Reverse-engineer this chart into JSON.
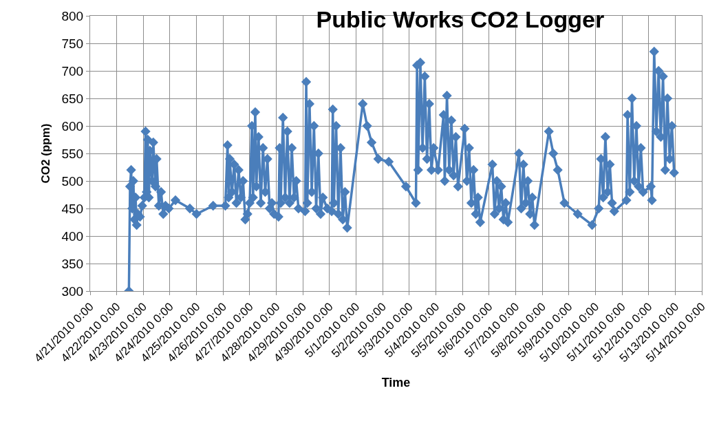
{
  "chart_data": {
    "type": "line",
    "title": "Public Works CO2 Logger",
    "xlabel": "Time",
    "ylabel": "CO2 (ppm)",
    "color": "#4a7ebb",
    "marker": "diamond",
    "line_style": "solid",
    "grid": true,
    "xlim": [
      "2010-04-21",
      "2010-05-14"
    ],
    "xticks": [
      {
        "value": "2010-04-21",
        "label": "4/21/2010 0:00"
      },
      {
        "value": "2010-04-22",
        "label": "4/22/2010 0:00"
      },
      {
        "value": "2010-04-23",
        "label": "4/23/2010 0:00"
      },
      {
        "value": "2010-04-24",
        "label": "4/24/2010 0:00"
      },
      {
        "value": "2010-04-25",
        "label": "4/25/2010 0:00"
      },
      {
        "value": "2010-04-26",
        "label": "4/26/2010 0:00"
      },
      {
        "value": "2010-04-27",
        "label": "4/27/2010 0:00"
      },
      {
        "value": "2010-04-28",
        "label": "4/28/2010 0:00"
      },
      {
        "value": "2010-04-29",
        "label": "4/29/2010 0:00"
      },
      {
        "value": "2010-04-30",
        "label": "4/30/2010 0:00"
      },
      {
        "value": "2010-05-01",
        "label": "5/1/2010 0:00"
      },
      {
        "value": "2010-05-02",
        "label": "5/2/2010 0:00"
      },
      {
        "value": "2010-05-03",
        "label": "5/3/2010 0:00"
      },
      {
        "value": "2010-05-04",
        "label": "5/4/2010 0:00"
      },
      {
        "value": "2010-05-05",
        "label": "5/5/2010 0:00"
      },
      {
        "value": "2010-05-06",
        "label": "5/6/2010 0:00"
      },
      {
        "value": "2010-05-07",
        "label": "5/7/2010 0:00"
      },
      {
        "value": "2010-05-08",
        "label": "5/8/2010 0:00"
      },
      {
        "value": "2010-05-09",
        "label": "5/9/2010 0:00"
      },
      {
        "value": "2010-05-10",
        "label": "5/10/2010 0:00"
      },
      {
        "value": "2010-05-11",
        "label": "5/11/2010 0:00"
      },
      {
        "value": "2010-05-12",
        "label": "5/12/2010 0:00"
      },
      {
        "value": "2010-05-13",
        "label": "5/13/2010 0:00"
      },
      {
        "value": "2010-05-14",
        "label": "5/14/2010 0:00"
      }
    ],
    "ylim": [
      300,
      800
    ],
    "yticks": [
      300,
      350,
      400,
      450,
      500,
      550,
      600,
      650,
      700,
      750,
      800
    ],
    "x": [
      "2010-04-22T11:00",
      "2010-04-22T12:00",
      "2010-04-22T13:00",
      "2010-04-22T14:00",
      "2010-04-22T15:00",
      "2010-04-22T16:00",
      "2010-04-22T17:00",
      "2010-04-22T18:00",
      "2010-04-22T19:00",
      "2010-04-22T21:00",
      "2010-04-22T23:00",
      "2010-04-23T01:00",
      "2010-04-23T02:00",
      "2010-04-23T03:00",
      "2010-04-23T04:00",
      "2010-04-23T05:00",
      "2010-04-23T06:00",
      "2010-04-23T08:00",
      "2010-04-23T09:00",
      "2010-04-23T11:00",
      "2010-04-23T12:00",
      "2010-04-23T14:00",
      "2010-04-23T16:00",
      "2010-04-23T18:00",
      "2010-04-23T20:00",
      "2010-04-23T23:00",
      "2010-04-24T05:00",
      "2010-04-24T18:00",
      "2010-04-25T00:00",
      "2010-04-25T15:00",
      "2010-04-26T02:00",
      "2010-04-26T04:00",
      "2010-04-26T05:00",
      "2010-04-26T06:00",
      "2010-04-26T08:00",
      "2010-04-26T10:00",
      "2010-04-26T12:00",
      "2010-04-26T14:00",
      "2010-04-26T16:00",
      "2010-04-26T18:00",
      "2010-04-26T20:00",
      "2010-04-26T22:00",
      "2010-04-27T00:00",
      "2010-04-27T02:00",
      "2010-04-27T03:00",
      "2010-04-27T05:00",
      "2010-04-27T06:00",
      "2010-04-27T08:00",
      "2010-04-27T10:00",
      "2010-04-27T12:00",
      "2010-04-27T14:00",
      "2010-04-27T16:00",
      "2010-04-27T18:00",
      "2010-04-27T20:00",
      "2010-04-27T22:00",
      "2010-04-28T02:00",
      "2010-04-28T03:00",
      "2010-04-28T04:00",
      "2010-04-28T06:00",
      "2010-04-28T08:00",
      "2010-04-28T10:00",
      "2010-04-28T12:00",
      "2010-04-28T14:00",
      "2010-04-28T16:00",
      "2010-04-28T18:00",
      "2010-04-28T20:00",
      "2010-04-29T02:00",
      "2010-04-29T03:00",
      "2010-04-29T04:00",
      "2010-04-29T06:00",
      "2010-04-29T08:00",
      "2010-04-29T10:00",
      "2010-04-29T12:00",
      "2010-04-29T14:00",
      "2010-04-29T16:00",
      "2010-04-29T18:00",
      "2010-04-29T22:00",
      "2010-04-30T02:00",
      "2010-04-30T03:00",
      "2010-04-30T04:00",
      "2010-04-30T06:00",
      "2010-04-30T08:00",
      "2010-04-30T10:00",
      "2010-04-30T12:00",
      "2010-04-30T14:00",
      "2010-04-30T16:00",
      "2010-05-01T06:00",
      "2010-05-01T10:00",
      "2010-05-01T14:00",
      "2010-05-01T20:00",
      "2010-05-02T05:30",
      "2010-05-02T21:00",
      "2010-05-03T06:00",
      "2010-05-03T07:00",
      "2010-05-03T08:00",
      "2010-05-03T10:00",
      "2010-05-03T12:00",
      "2010-05-03T14:00",
      "2010-05-03T16:00",
      "2010-05-03T18:00",
      "2010-05-03T20:00",
      "2010-05-03T22:00",
      "2010-05-04T02:00",
      "2010-05-04T07:00",
      "2010-05-04T08:00",
      "2010-05-04T10:00",
      "2010-05-04T12:00",
      "2010-05-04T14:00",
      "2010-05-04T16:00",
      "2010-05-04T18:00",
      "2010-05-04T20:00",
      "2010-05-05T02:00",
      "2010-05-05T04:00",
      "2010-05-05T06:00",
      "2010-05-05T08:00",
      "2010-05-05T10:00",
      "2010-05-05T12:00",
      "2010-05-05T14:00",
      "2010-05-05T16:00",
      "2010-05-06T03:00",
      "2010-05-06T05:00",
      "2010-05-06T07:00",
      "2010-05-06T09:00",
      "2010-05-06T11:00",
      "2010-05-06T13:00",
      "2010-05-06T15:00",
      "2010-05-06T17:00",
      "2010-05-07T03:00",
      "2010-05-07T05:00",
      "2010-05-07T07:00",
      "2010-05-07T09:00",
      "2010-05-07T11:00",
      "2010-05-07T13:00",
      "2010-05-07T15:00",
      "2010-05-07T17:00",
      "2010-05-08T06:00",
      "2010-05-08T10:00",
      "2010-05-08T14:00",
      "2010-05-08T20:00",
      "2010-05-09T08:00",
      "2010-05-09T21:00",
      "2010-05-10T03:00",
      "2010-05-10T05:00",
      "2010-05-10T07:00",
      "2010-05-10T09:00",
      "2010-05-10T11:00",
      "2010-05-10T13:00",
      "2010-05-10T15:00",
      "2010-05-10T17:00",
      "2010-05-11T04:00",
      "2010-05-11T05:00",
      "2010-05-11T07:00",
      "2010-05-11T09:00",
      "2010-05-11T11:00",
      "2010-05-11T13:00",
      "2010-05-11T15:00",
      "2010-05-11T17:00",
      "2010-05-11T19:00",
      "2010-05-12T02:00",
      "2010-05-12T03:00",
      "2010-05-12T05:00",
      "2010-05-12T07:00",
      "2010-05-12T09:00",
      "2010-05-12T11:00",
      "2010-05-12T13:00",
      "2010-05-12T15:00",
      "2010-05-12T17:00",
      "2010-05-12T19:00",
      "2010-05-12T21:00",
      "2010-05-12T23:00"
    ],
    "values": [
      300,
      490,
      520,
      450,
      500,
      430,
      470,
      420,
      440,
      435,
      455,
      470,
      590,
      480,
      575,
      470,
      555,
      500,
      570,
      490,
      540,
      455,
      480,
      440,
      455,
      450,
      465,
      450,
      440,
      455,
      455,
      565,
      470,
      540,
      480,
      530,
      460,
      520,
      470,
      500,
      430,
      440,
      460,
      600,
      470,
      625,
      490,
      580,
      460,
      560,
      480,
      540,
      450,
      460,
      440,
      435,
      560,
      460,
      615,
      470,
      590,
      460,
      560,
      470,
      500,
      450,
      445,
      680,
      460,
      640,
      480,
      600,
      450,
      550,
      440,
      470,
      450,
      445,
      630,
      460,
      600,
      440,
      560,
      430,
      480,
      415,
      640,
      600,
      570,
      540,
      535,
      490,
      460,
      710,
      520,
      715,
      560,
      690,
      540,
      640,
      520,
      560,
      520,
      620,
      500,
      655,
      520,
      610,
      510,
      580,
      490,
      595,
      500,
      560,
      460,
      520,
      440,
      470,
      425,
      530,
      440,
      500,
      450,
      490,
      430,
      460,
      425,
      550,
      450,
      530,
      460,
      500,
      440,
      470,
      420,
      590,
      550,
      520,
      460,
      440,
      420,
      450,
      540,
      470,
      580,
      480,
      530,
      460,
      445,
      465,
      620,
      480,
      650,
      500,
      600,
      490,
      560,
      480,
      490,
      465,
      735,
      590,
      700,
      580,
      690,
      520,
      650,
      540,
      600,
      515
    ]
  }
}
